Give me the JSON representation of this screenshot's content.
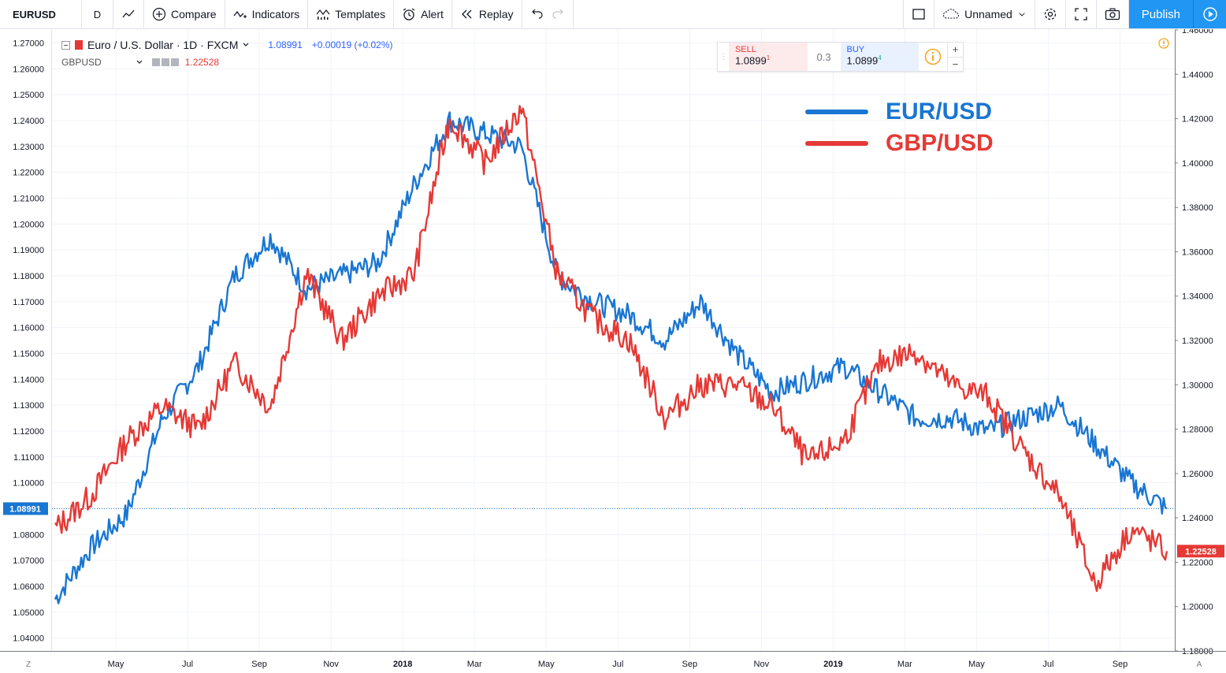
{
  "toolbar": {
    "symbol": "EURUSD",
    "interval": "D",
    "compare_label": "Compare",
    "indicators_label": "Indicators",
    "templates_label": "Templates",
    "alert_label": "Alert",
    "replay_label": "Replay",
    "layout_name": "Unnamed",
    "publish_label": "Publish"
  },
  "legend": {
    "title": "Euro / U.S. Dollar · 1D · FXCM",
    "last": "1.08991",
    "change": "+0.00019 (+0.02%)",
    "compare_symbol": "GBPUSD",
    "compare_value": "1.22528"
  },
  "trade": {
    "sell_label": "SELL",
    "sell_price": "1.0899",
    "sell_sup": "1",
    "spread": "0.3",
    "buy_label": "BUY",
    "buy_price": "1.0899",
    "buy_sup": "4",
    "plus": "+",
    "minus": "−"
  },
  "overlay_legend": {
    "eur": "EUR/USD",
    "gbp": "GBP/USD",
    "eur_color": "#1976d2",
    "gbp_color": "#e53935"
  },
  "axes": {
    "left_ticks": [
      "1.27000",
      "1.26000",
      "1.25000",
      "1.24000",
      "1.23000",
      "1.22000",
      "1.21000",
      "1.20000",
      "1.19000",
      "1.18000",
      "1.17000",
      "1.16000",
      "1.15000",
      "1.14000",
      "1.13000",
      "1.12000",
      "1.11000",
      "1.10000",
      "1.09000",
      "1.08000",
      "1.07000",
      "1.06000",
      "1.05000",
      "1.04000"
    ],
    "right_ticks": [
      "1.46000",
      "1.44000",
      "1.42000",
      "1.40000",
      "1.38000",
      "1.36000",
      "1.34000",
      "1.32000",
      "1.30000",
      "1.28000",
      "1.26000",
      "1.24000",
      "1.22000",
      "1.20000",
      "1.18000"
    ],
    "x_ticks": [
      "May",
      "Jul",
      "Sep",
      "Nov",
      "2018",
      "Mar",
      "May",
      "Jul",
      "Sep",
      "Nov",
      "2019",
      "Mar",
      "May",
      "Jul",
      "Sep"
    ],
    "bold_x": [
      "2018",
      "2019"
    ],
    "left_price_tag": "1.08991",
    "right_price_tag": "1.22528",
    "z_label": "Z",
    "a_label": "A"
  },
  "chart_data": {
    "type": "line",
    "x_dates": [
      "2017-03",
      "2017-04",
      "2017-05",
      "2017-06",
      "2017-07",
      "2017-08",
      "2017-09",
      "2017-10",
      "2017-11",
      "2017-12",
      "2018-01",
      "2018-02",
      "2018-03",
      "2018-04",
      "2018-05",
      "2018-06",
      "2018-07",
      "2018-08",
      "2018-09",
      "2018-10",
      "2018-11",
      "2018-12",
      "2019-01",
      "2019-02",
      "2019-03",
      "2019-04",
      "2019-05",
      "2019-06",
      "2019-07",
      "2019-08",
      "2019-09",
      "2019-10"
    ],
    "series": [
      {
        "name": "EUR/USD",
        "axis": "left",
        "color": "#1976d2",
        "values": [
          1.055,
          1.075,
          1.088,
          1.125,
          1.145,
          1.18,
          1.195,
          1.175,
          1.18,
          1.185,
          1.215,
          1.24,
          1.235,
          1.23,
          1.18,
          1.17,
          1.165,
          1.155,
          1.17,
          1.15,
          1.135,
          1.14,
          1.145,
          1.135,
          1.125,
          1.125,
          1.12,
          1.125,
          1.13,
          1.115,
          1.1,
          1.09
        ]
      },
      {
        "name": "GBP/USD",
        "axis": "right",
        "color": "#e53935",
        "values": [
          1.235,
          1.25,
          1.275,
          1.29,
          1.28,
          1.31,
          1.29,
          1.35,
          1.32,
          1.34,
          1.35,
          1.42,
          1.4,
          1.425,
          1.35,
          1.33,
          1.32,
          1.285,
          1.3,
          1.3,
          1.29,
          1.265,
          1.275,
          1.31,
          1.315,
          1.3,
          1.295,
          1.27,
          1.25,
          1.21,
          1.235,
          1.225
        ]
      }
    ],
    "left_ylim": [
      1.035,
      1.275
    ],
    "right_ylim": [
      1.18,
      1.46
    ],
    "grid": true
  }
}
